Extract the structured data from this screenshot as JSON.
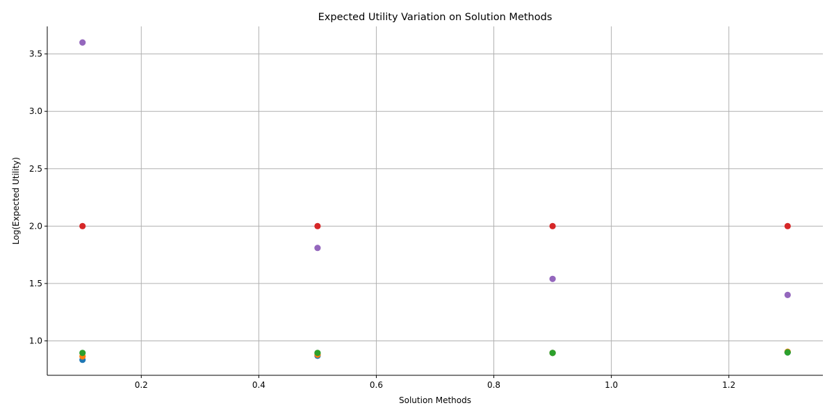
{
  "chart_data": {
    "type": "scatter",
    "title": "Expected Utility Variation on Solution Methods",
    "xlabel": "Solution Methods",
    "ylabel": "Log(Expected Utility)",
    "xlim": [
      0.04,
      1.36
    ],
    "ylim": [
      0.7,
      3.74
    ],
    "xticks": [
      0.2,
      0.4,
      0.6,
      0.8,
      1.0,
      1.2
    ],
    "xtick_labels": [
      "0.2",
      "0.4",
      "0.6",
      "0.8",
      "1.0",
      "1.2"
    ],
    "yticks": [
      1.0,
      1.5,
      2.0,
      2.5,
      3.0,
      3.5
    ],
    "ytick_labels": [
      "1.0",
      "1.5",
      "2.0",
      "2.5",
      "3.0",
      "3.5"
    ],
    "grid": true,
    "x": [
      0.1,
      0.5,
      0.9,
      1.3
    ],
    "series": [
      {
        "color": "#1f77b4",
        "values": [
          0.835,
          0.87,
          0.895,
          0.9
        ]
      },
      {
        "color": "#ff7f0e",
        "values": [
          0.865,
          0.88,
          0.895,
          0.905
        ]
      },
      {
        "color": "#2ca02c",
        "values": [
          0.895,
          0.895,
          0.895,
          0.9
        ]
      },
      {
        "color": "#d62728",
        "values": [
          2.0,
          2.0,
          2.0,
          2.0
        ]
      },
      {
        "color": "#9467bd",
        "values": [
          3.6,
          1.81,
          1.54,
          1.4
        ]
      }
    ]
  }
}
